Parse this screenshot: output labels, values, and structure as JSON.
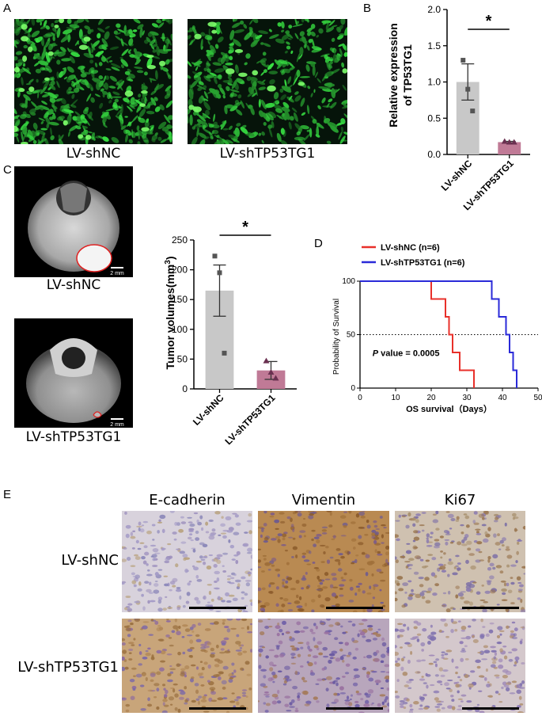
{
  "panels": {
    "A": "A",
    "B": "B",
    "C": "C",
    "D": "D",
    "E": "E"
  },
  "panelA": {
    "captions": [
      "LV-shNC",
      "LV-shTP53TG1"
    ]
  },
  "panelB": {
    "chart_data": {
      "type": "bar",
      "categories": [
        "LV-shNC",
        "LV-shTP53TG1"
      ],
      "values": [
        1.0,
        0.17
      ],
      "errors": [
        0.25,
        0.01
      ],
      "points": [
        [
          1.3,
          0.9,
          0.6
        ],
        [
          0.18,
          0.17,
          0.17
        ]
      ],
      "ylabel": "Relative expression of TP53TG1",
      "ylabel_lines": [
        "Relative expression",
        "of TP53TG1"
      ],
      "ylim": [
        0,
        2.0
      ],
      "yticks": [
        "0.0",
        "0.5",
        "1.0",
        "1.5",
        "2.0"
      ],
      "significance": "*",
      "colors": [
        "#c8c8c8",
        "#c07a96"
      ]
    }
  },
  "panelC": {
    "captions": [
      "LV-shNC",
      "LV-shTP53TG1"
    ],
    "scale_label": "2 mm",
    "chart_data": {
      "type": "bar",
      "categories": [
        "LV-shNC",
        "LV-shTP53TG1"
      ],
      "values": [
        165,
        31
      ],
      "errors": [
        43,
        15
      ],
      "points": [
        [
          223,
          195,
          60
        ],
        [
          47,
          28,
          18
        ]
      ],
      "ylabel": "Tumor volumes(mm",
      "ylabel_sup": "3",
      "ylabel_end": ")",
      "ylim": [
        0,
        250
      ],
      "yticks": [
        "0",
        "50",
        "100",
        "150",
        "200",
        "250"
      ],
      "significance": "*",
      "colors": [
        "#c8c8c8",
        "#c07a96"
      ]
    }
  },
  "panelD": {
    "chart_data": {
      "type": "line",
      "xlabel": "OS survival（Days）",
      "ylabel": "Probability of Survival",
      "xlim": [
        0,
        50
      ],
      "ylim": [
        0,
        100
      ],
      "xticks": [
        "0",
        "10",
        "20",
        "30",
        "40",
        "50"
      ],
      "yticks": [
        "0",
        "50",
        "100"
      ],
      "annotation_p": "P",
      "annotation_rest": " value = 0.0005",
      "series": [
        {
          "name": "LV-shNC (n=6)",
          "color": "#e8302a",
          "steps": [
            [
              0,
              100
            ],
            [
              20,
              83.3
            ],
            [
              24,
              66.7
            ],
            [
              25,
              50
            ],
            [
              26,
              33.3
            ],
            [
              28,
              16.7
            ],
            [
              32,
              0
            ]
          ]
        },
        {
          "name": "LV-shTP53TG1 (n=6)",
          "color": "#2a2ad8",
          "steps": [
            [
              0,
              100
            ],
            [
              37,
              83.3
            ],
            [
              39,
              66.7
            ],
            [
              41,
              50
            ],
            [
              42,
              33.3
            ],
            [
              43,
              16.7
            ],
            [
              44,
              0
            ]
          ]
        }
      ],
      "reference_line": 50
    }
  },
  "panelE": {
    "columns": [
      "E-cadherin",
      "Vimentin",
      "Ki67"
    ],
    "rows": [
      "LV-shNC",
      "LV-shTP53TG1"
    ]
  }
}
